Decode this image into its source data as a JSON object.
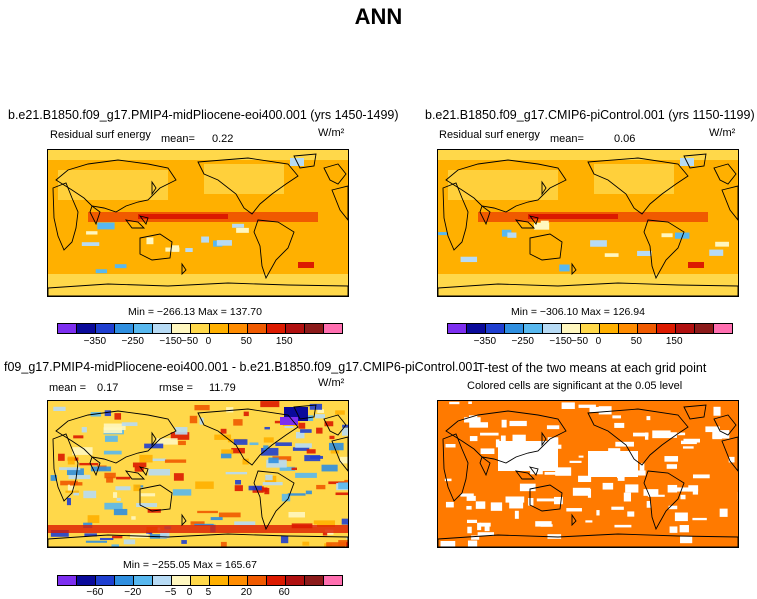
{
  "title": "ANN",
  "panel_tl": {
    "title": "b.e21.B1850.f09_g17.PMIP4-midPliocene-eoi400.001 (yrs 1450-1499)",
    "variable": "Residual surf energy",
    "mean_label": "mean=",
    "mean_value": "0.22",
    "units": "W/m²",
    "minmax": "Min = −266.13  Max = 137.70"
  },
  "panel_tr": {
    "title": "b.e21.B1850.f09_g17.CMIP6-piControl.001 (yrs 1150-1199)",
    "variable": "Residual surf energy",
    "mean_label": "mean=",
    "mean_value": "0.06",
    "units": "W/m²",
    "minmax": "Min = −306.10  Max = 126.94"
  },
  "panel_bl": {
    "title": "f09_g17.PMIP4-midPliocene-eoi400.001 - b.e21.B1850.f09_g17.CMIP6-piControl.001",
    "mean_label": "mean =",
    "mean_value": "0.17",
    "rmse_label": "rmse =",
    "rmse_value": "11.79",
    "units": "W/m²",
    "minmax": "Min = −255.05  Max = 165.67"
  },
  "panel_br": {
    "title": "T-test of the two means at each grid point",
    "subtitle": "Colored cells are significant at the 0.05 level"
  },
  "colorbar_top": {
    "colors": [
      "#7d2ff0",
      "#0a0a9a",
      "#1f3fd0",
      "#2f8fe0",
      "#58b8ef",
      "#b7dbf5",
      "#fff7bf",
      "#ffd84a",
      "#ffb000",
      "#ff8c00",
      "#f05a00",
      "#dc1a00",
      "#b01010",
      "#8b1a1a",
      "#ff6fb0"
    ],
    "ticks": [
      "−350",
      "−250",
      "−150",
      "−50",
      "0",
      "50",
      "150"
    ]
  },
  "colorbar_bottom": {
    "colors": [
      "#7d2ff0",
      "#0a0a9a",
      "#1f3fd0",
      "#2f8fe0",
      "#58b8ef",
      "#b7dbf5",
      "#fff7bf",
      "#ffd84a",
      "#ffb000",
      "#ff8c00",
      "#f05a00",
      "#dc1a00",
      "#b01010",
      "#8b1a1a",
      "#ff6fb0"
    ],
    "ticks": [
      "−60",
      "−20",
      "−5",
      "0",
      "5",
      "20",
      "60"
    ]
  },
  "colors": {
    "abs_field_bg": "#ffb000",
    "abs_field_band": "#f05a00",
    "abs_field_light": "#ffd84a",
    "diff_bg": "#ffd84a",
    "ttest_fill": "#ff7a00",
    "coast": "#000000"
  }
}
